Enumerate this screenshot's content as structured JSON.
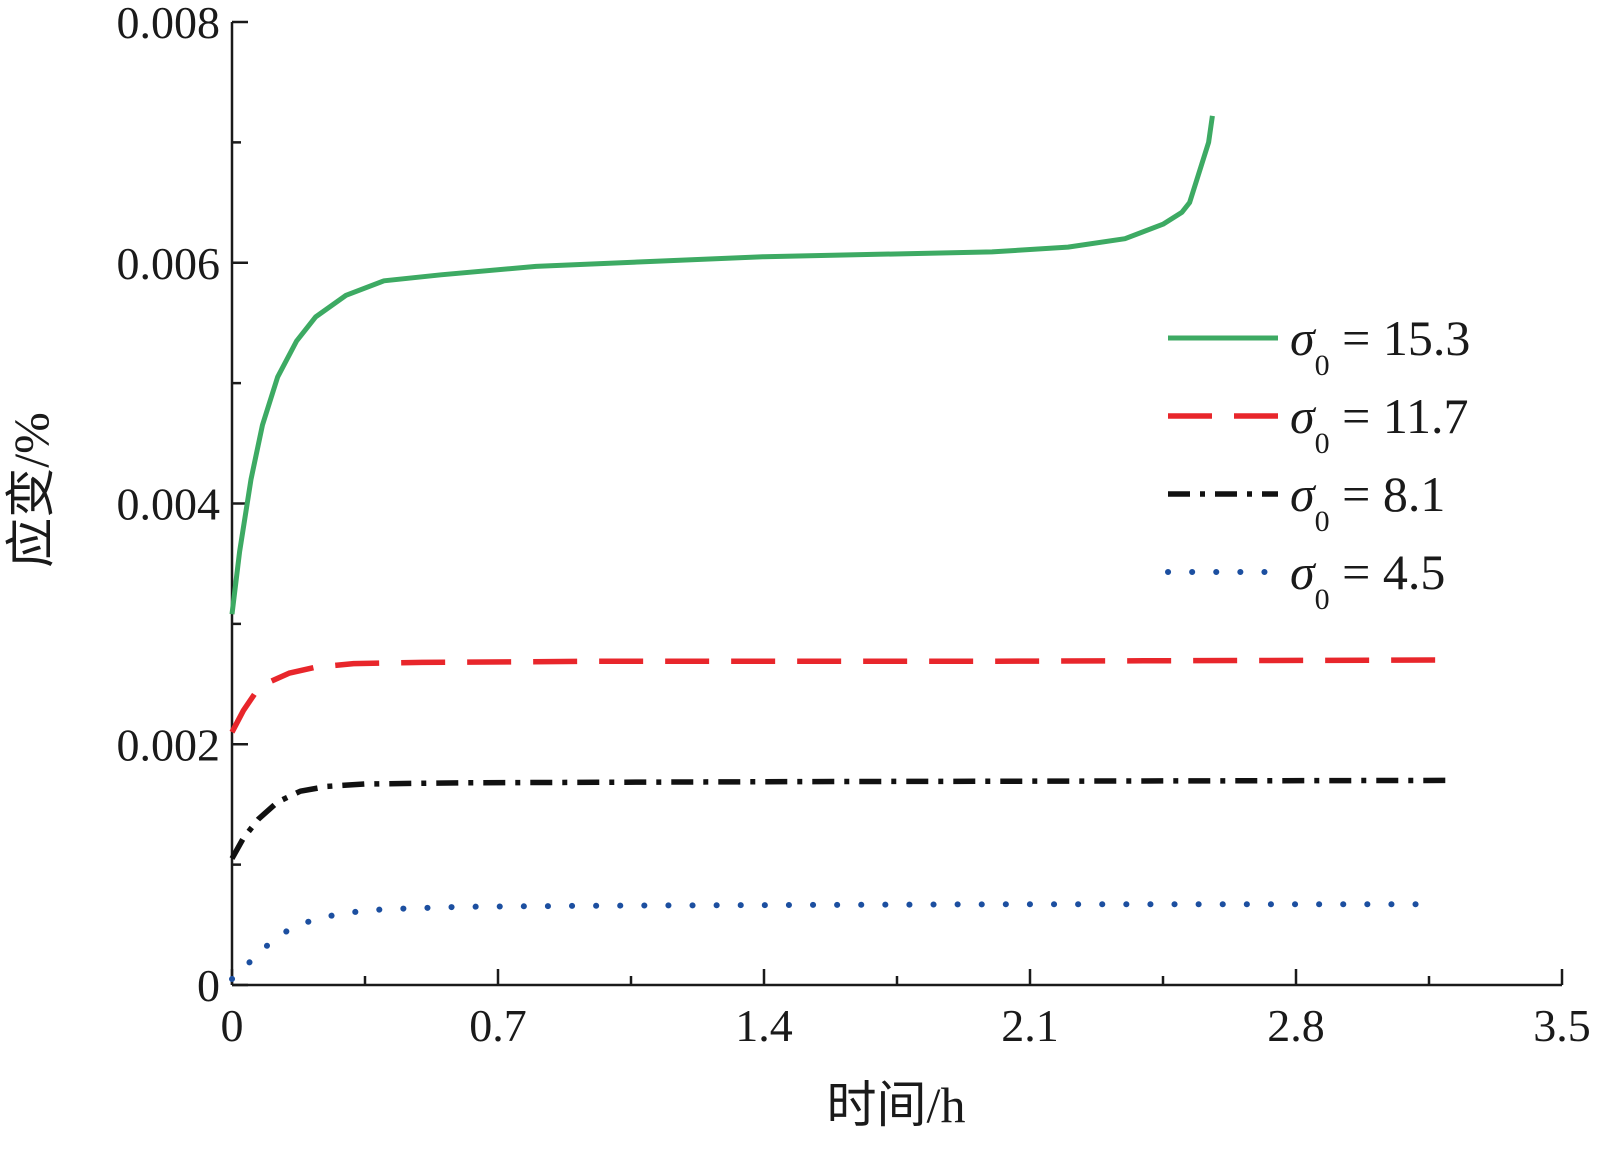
{
  "chart_data": {
    "type": "line",
    "xlabel": "时间/h",
    "ylabel": "应变/%",
    "xlim": [
      0,
      3.5
    ],
    "ylim": [
      0,
      0.008
    ],
    "x_ticks": [
      "0",
      "0.7",
      "1.4",
      "2.1",
      "2.8",
      "3.5"
    ],
    "y_ticks": [
      "0",
      "0.002",
      "0.004",
      "0.006",
      "0.008"
    ],
    "grid": false,
    "legend_position": "right",
    "series": [
      {
        "symbol": "σ",
        "subscript": "0",
        "value": "15.3",
        "color": "#3daa63",
        "style": "solid",
        "points": [
          [
            0,
            0.00308
          ],
          [
            0.02,
            0.0036
          ],
          [
            0.05,
            0.0042
          ],
          [
            0.08,
            0.00465
          ],
          [
            0.12,
            0.00505
          ],
          [
            0.17,
            0.00535
          ],
          [
            0.22,
            0.00555
          ],
          [
            0.3,
            0.00573
          ],
          [
            0.4,
            0.00585
          ],
          [
            0.55,
            0.0059
          ],
          [
            0.8,
            0.00597
          ],
          [
            1.1,
            0.00601
          ],
          [
            1.4,
            0.00605
          ],
          [
            1.7,
            0.00607
          ],
          [
            2.0,
            0.00609
          ],
          [
            2.2,
            0.00613
          ],
          [
            2.35,
            0.0062
          ],
          [
            2.45,
            0.00632
          ],
          [
            2.5,
            0.00642
          ],
          [
            2.52,
            0.0065
          ],
          [
            2.55,
            0.0068
          ],
          [
            2.57,
            0.007
          ],
          [
            2.58,
            0.00722
          ]
        ]
      },
      {
        "symbol": "σ",
        "subscript": "0",
        "value": "11.7",
        "color": "#e8262b",
        "style": "dashed",
        "points": [
          [
            0,
            0.0021
          ],
          [
            0.03,
            0.00228
          ],
          [
            0.06,
            0.00242
          ],
          [
            0.1,
            0.00252
          ],
          [
            0.15,
            0.00259
          ],
          [
            0.22,
            0.00264
          ],
          [
            0.32,
            0.00267
          ],
          [
            0.5,
            0.00268
          ],
          [
            1.0,
            0.00269
          ],
          [
            2.0,
            0.00269
          ],
          [
            3.2,
            0.0027
          ]
        ]
      },
      {
        "symbol": "σ",
        "subscript": "0",
        "value": "8.1",
        "color": "#111111",
        "style": "dashdot",
        "points": [
          [
            0,
            0.00105
          ],
          [
            0.03,
            0.00122
          ],
          [
            0.07,
            0.00138
          ],
          [
            0.12,
            0.00152
          ],
          [
            0.18,
            0.00161
          ],
          [
            0.25,
            0.00165
          ],
          [
            0.35,
            0.00167
          ],
          [
            0.6,
            0.00168
          ],
          [
            1.5,
            0.00169
          ],
          [
            3.2,
            0.0017
          ]
        ]
      },
      {
        "symbol": "σ",
        "subscript": "0",
        "value": "4.5",
        "color": "#1c4fa0",
        "style": "dotted",
        "points": [
          [
            0,
            5e-05
          ],
          [
            0.05,
            0.0002
          ],
          [
            0.1,
            0.00035
          ],
          [
            0.15,
            0.00046
          ],
          [
            0.22,
            0.00055
          ],
          [
            0.3,
            0.0006
          ],
          [
            0.4,
            0.00063
          ],
          [
            0.6,
            0.00065
          ],
          [
            1.0,
            0.00066
          ],
          [
            2.0,
            0.00067
          ],
          [
            3.15,
            0.00067
          ]
        ]
      }
    ]
  }
}
